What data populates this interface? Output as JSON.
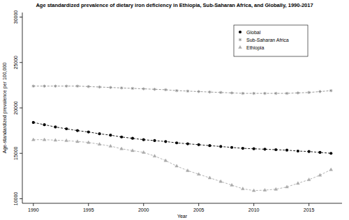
{
  "chart_data": {
    "type": "line",
    "title": "Age standardized prevalence of dietary iron deficiency in Ethiopia, Sub-Saharan Africa, and Globally, 1990-2017",
    "x_label": "Year",
    "y_label": "Age-standardized prevalence per 100,000",
    "x": [
      1990,
      1991,
      1992,
      1993,
      1994,
      1995,
      1996,
      1997,
      1998,
      1999,
      2000,
      2001,
      2002,
      2003,
      2004,
      2005,
      2006,
      2007,
      2008,
      2009,
      2010,
      2011,
      2012,
      2013,
      2014,
      2015,
      2016,
      2017
    ],
    "series": [
      {
        "name": "Global",
        "color": "#000000",
        "marker": "circle",
        "line_style": "dashed",
        "values": [
          18400,
          18150,
          17900,
          17700,
          17500,
          17350,
          17150,
          17000,
          16800,
          16650,
          16500,
          16400,
          16300,
          16150,
          16050,
          15950,
          15850,
          15750,
          15650,
          15550,
          15500,
          15450,
          15400,
          15350,
          15250,
          15200,
          15100,
          15000
        ]
      },
      {
        "name": "Sub-Saharan Africa",
        "color": "#8c8c8c",
        "marker": "star",
        "line_style": "dashed",
        "values": [
          22400,
          22400,
          22400,
          22400,
          22400,
          22350,
          22300,
          22250,
          22200,
          22150,
          22100,
          22050,
          22000,
          21900,
          21850,
          21800,
          21750,
          21700,
          21650,
          21600,
          21600,
          21600,
          21600,
          21600,
          21650,
          21700,
          21800,
          21900
        ]
      },
      {
        "name": "Ethiopia",
        "color": "#aaaaaa",
        "marker": "triangle",
        "line_style": "dashed",
        "values": [
          16500,
          16500,
          16450,
          16400,
          16300,
          16200,
          16000,
          15800,
          15500,
          15300,
          15100,
          14700,
          14200,
          13600,
          13100,
          12700,
          12300,
          11900,
          11500,
          11100,
          10900,
          10950,
          11050,
          11300,
          11700,
          12100,
          12600,
          13200
        ]
      }
    ],
    "xlim": [
      1989,
      2018
    ],
    "ylim": [
      9500,
      30500
    ],
    "xticks": [
      1990,
      1995,
      2000,
      2005,
      2010,
      2015
    ],
    "yticks": [
      10000,
      15000,
      20000,
      25000,
      30000
    ],
    "legend": "top-right",
    "grid": false
  }
}
